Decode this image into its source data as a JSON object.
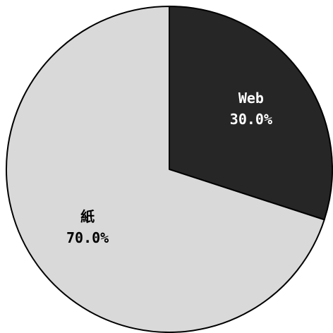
{
  "chart_data": {
    "type": "pie",
    "title": "",
    "start_angle_deg": 0,
    "direction": "clockwise",
    "legend": "none",
    "slices": [
      {
        "label": "Web",
        "value": 30.0,
        "value_label": "30.0%",
        "color": "#262626",
        "text_color": "#ffffff"
      },
      {
        "label": "紙",
        "value": 70.0,
        "value_label": "70.0%",
        "color": "#d9d9d9",
        "text_color": "#000000"
      }
    ]
  }
}
